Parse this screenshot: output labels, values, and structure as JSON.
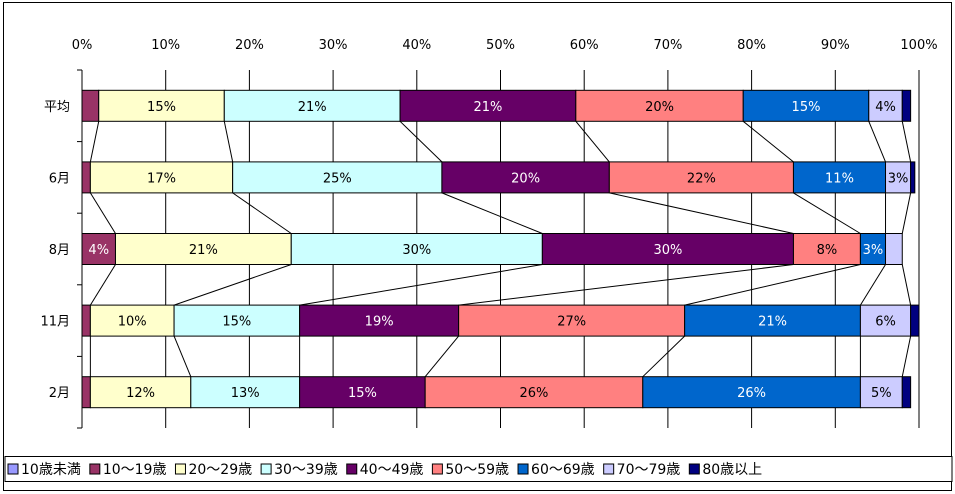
{
  "chart_data": {
    "type": "bar",
    "stacked": true,
    "orientation": "horizontal",
    "percent": true,
    "categories": [
      "平均",
      "6月",
      "8月",
      "11月",
      "2月"
    ],
    "x_ticks": [
      "0%",
      "10%",
      "20%",
      "30%",
      "40%",
      "50%",
      "60%",
      "70%",
      "80%",
      "90%",
      "100%"
    ],
    "xlim": [
      0,
      100
    ],
    "grid": true,
    "legend_position": "bottom",
    "series": [
      {
        "name": "10歳未満",
        "color": "#9999ff",
        "values": [
          0,
          0,
          0,
          0,
          0
        ],
        "labels": [
          "",
          "",
          "",
          "",
          ""
        ]
      },
      {
        "name": "10～19歳",
        "color": "#993366",
        "values": [
          2,
          1,
          4,
          1,
          1
        ],
        "labels": [
          "",
          "",
          "4%",
          "",
          ""
        ]
      },
      {
        "name": "20～29歳",
        "color": "#ffffcc",
        "values": [
          15,
          17,
          21,
          10,
          12
        ],
        "labels": [
          "15%",
          "17%",
          "21%",
          "10%",
          "12%"
        ]
      },
      {
        "name": "30～39歳",
        "color": "#ccffff",
        "values": [
          21,
          25,
          30,
          15,
          13
        ],
        "labels": [
          "21%",
          "25%",
          "30%",
          "15%",
          "13%"
        ]
      },
      {
        "name": "40～49歳",
        "color": "#660066",
        "values": [
          21,
          20,
          30,
          19,
          15
        ],
        "labels": [
          "21%",
          "20%",
          "30%",
          "19%",
          "15%"
        ]
      },
      {
        "name": "50～59歳",
        "color": "#ff8080",
        "values": [
          20,
          22,
          8,
          27,
          26
        ],
        "labels": [
          "20%",
          "22%",
          "8%",
          "27%",
          "26%"
        ]
      },
      {
        "name": "60～69歳",
        "color": "#0066cc",
        "values": [
          15,
          11,
          3,
          21,
          26
        ],
        "labels": [
          "15%",
          "11%",
          "3%",
          "21%",
          "26%"
        ]
      },
      {
        "name": "70～79歳",
        "color": "#ccccff",
        "values": [
          4,
          3,
          2,
          6,
          5
        ],
        "labels": [
          "4%",
          "3%",
          "",
          "6%",
          "5%"
        ]
      },
      {
        "name": "80歳以上",
        "color": "#000080",
        "values": [
          1,
          0.5,
          0,
          1,
          1
        ],
        "labels": [
          "",
          "",
          "",
          "",
          ""
        ]
      }
    ]
  }
}
